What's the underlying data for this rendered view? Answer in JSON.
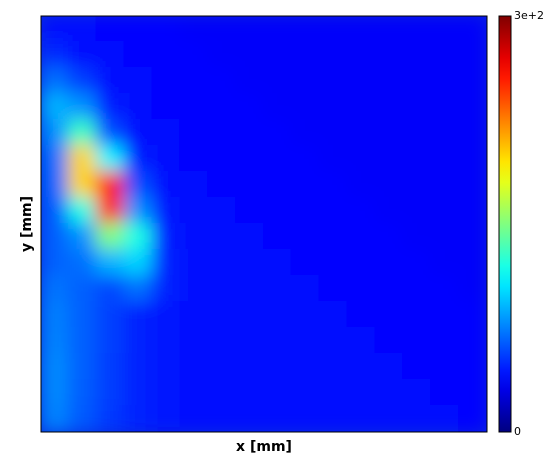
{
  "chart_data": {
    "type": "heatmap",
    "xlabel": "x [mm]",
    "ylabel": "y [mm]",
    "colormap": "jet",
    "zlim": [
      0,
      300
    ],
    "zticks": [
      0,
      {
        "value": 300,
        "label": "3e+2"
      }
    ],
    "values": [
      [
        42,
        40,
        38,
        38,
        38,
        36,
        36,
        36,
        36,
        36,
        36,
        36,
        36,
        36,
        36,
        36
      ],
      [
        50,
        42,
        40,
        38,
        38,
        38,
        36,
        36,
        36,
        36,
        36,
        36,
        36,
        36,
        36,
        36
      ],
      [
        70,
        55,
        42,
        40,
        38,
        38,
        38,
        36,
        36,
        36,
        36,
        36,
        36,
        36,
        36,
        36
      ],
      [
        90,
        80,
        45,
        40,
        38,
        38,
        38,
        38,
        36,
        36,
        36,
        36,
        36,
        36,
        36,
        36
      ],
      [
        80,
        130,
        60,
        42,
        40,
        38,
        38,
        38,
        38,
        36,
        36,
        36,
        36,
        36,
        36,
        36
      ],
      [
        70,
        200,
        110,
        45,
        40,
        38,
        38,
        38,
        38,
        38,
        36,
        36,
        36,
        36,
        36,
        36
      ],
      [
        68,
        200,
        260,
        60,
        42,
        40,
        38,
        38,
        38,
        38,
        38,
        36,
        36,
        36,
        36,
        36
      ],
      [
        65,
        120,
        250,
        80,
        44,
        40,
        40,
        38,
        38,
        38,
        38,
        38,
        36,
        36,
        36,
        36
      ],
      [
        65,
        80,
        150,
        120,
        46,
        42,
        40,
        40,
        38,
        38,
        38,
        38,
        38,
        36,
        36,
        36
      ],
      [
        66,
        70,
        90,
        100,
        48,
        42,
        40,
        40,
        40,
        38,
        38,
        38,
        38,
        38,
        36,
        36
      ],
      [
        72,
        66,
        58,
        70,
        48,
        42,
        40,
        40,
        40,
        40,
        38,
        38,
        38,
        38,
        38,
        36
      ],
      [
        75,
        66,
        56,
        48,
        44,
        42,
        40,
        40,
        40,
        40,
        40,
        38,
        38,
        38,
        38,
        38
      ],
      [
        76,
        66,
        56,
        48,
        44,
        42,
        40,
        40,
        40,
        40,
        40,
        40,
        38,
        38,
        38,
        38
      ],
      [
        78,
        66,
        55,
        48,
        44,
        42,
        40,
        40,
        40,
        40,
        40,
        40,
        40,
        38,
        38,
        38
      ],
      [
        78,
        65,
        55,
        48,
        44,
        42,
        40,
        40,
        40,
        40,
        40,
        40,
        40,
        40,
        38,
        38
      ],
      [
        76,
        64,
        54,
        47,
        44,
        42,
        40,
        40,
        40,
        40,
        40,
        40,
        40,
        40,
        40,
        38
      ]
    ]
  }
}
